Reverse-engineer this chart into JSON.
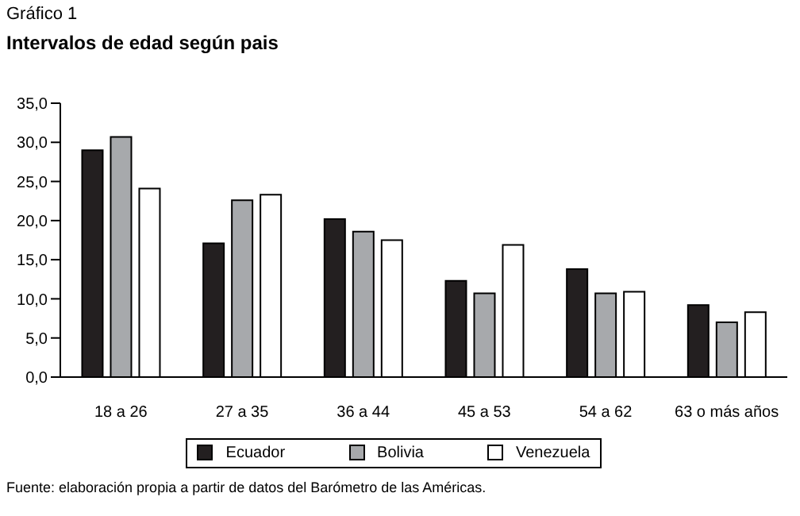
{
  "chart_data": {
    "type": "bar",
    "subtitle": "Gráfico 1",
    "title": "Intervalos de edad según pais",
    "categories": [
      "18 a 26",
      "27 a 35",
      "36 a 44",
      "45 a 53",
      "54 a 62",
      "63 o más años"
    ],
    "series": [
      {
        "name": "Ecuador",
        "color": "#231f20",
        "values": [
          29.0,
          17.1,
          20.2,
          12.3,
          13.8,
          9.2
        ]
      },
      {
        "name": "Bolivia",
        "color": "#a7a9ac",
        "values": [
          30.7,
          22.6,
          18.6,
          10.7,
          10.7,
          7.0
        ]
      },
      {
        "name": "Venezuela",
        "color": "#ffffff",
        "values": [
          24.1,
          23.3,
          17.5,
          16.9,
          10.9,
          8.3
        ]
      }
    ],
    "ylim": [
      0,
      35
    ],
    "yticks": [
      {
        "value": 0,
        "label": "0,0"
      },
      {
        "value": 5,
        "label": "5,0"
      },
      {
        "value": 10,
        "label": "10,0"
      },
      {
        "value": 15,
        "label": "15,0"
      },
      {
        "value": 20,
        "label": "20,0"
      },
      {
        "value": 25,
        "label": "25,0"
      },
      {
        "value": 30,
        "label": "30,0"
      },
      {
        "value": 35,
        "label": "35,0"
      }
    ],
    "grid": false,
    "legend": "bottom",
    "annotations": [
      "Fuente: elaboración propia a partir de datos del Barómetro de las Américas."
    ]
  }
}
